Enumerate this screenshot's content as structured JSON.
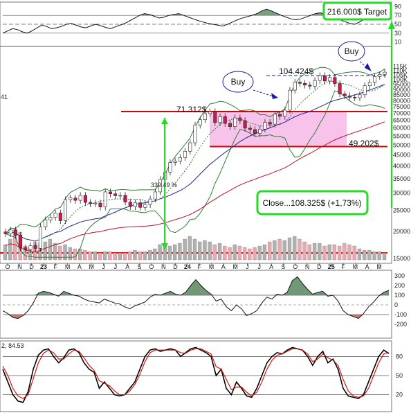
{
  "colors": {
    "up_candle": "#ffffff",
    "down_candle": "#cc1a4a",
    "wick": "#222222",
    "bollinger": "#2e7d32",
    "ma_blue": "#1f1f9e",
    "ma_red": "#c0102a",
    "ma_dotted": "#2e7d32",
    "range_box": "#f7b8e8",
    "support_line": "#dd0000",
    "arrow": "#22dd22",
    "osc_fill": "#4f7f55",
    "osc_neg_fill": "#b05a5a",
    "stoch_k": "#000000",
    "stoch_d": "#dd0000",
    "volume_up": "#b0b0b0",
    "volume_down": "#e8a8b0",
    "target_line": "#1010cc",
    "label_box_border": "#22dd22"
  },
  "chart_data": [
    {
      "type": "line",
      "panel": "top_oscillator",
      "yaxis_ticks": [
        "90",
        "70",
        "50",
        "30",
        "10"
      ],
      "reference_lines": [
        70,
        50,
        30
      ],
      "y": [
        30,
        35,
        40,
        38,
        33,
        30,
        35,
        42,
        48,
        45,
        40,
        42,
        45,
        50,
        52,
        48,
        44,
        42,
        46,
        50,
        47,
        43,
        40,
        44,
        48,
        52,
        58,
        64,
        70,
        74,
        72,
        68,
        64,
        66,
        70,
        72,
        74,
        70,
        66,
        62,
        58,
        55,
        52,
        50,
        48,
        46,
        50,
        55,
        60,
        64,
        67,
        70,
        74,
        80,
        84,
        80,
        75,
        70,
        66,
        62,
        60,
        62,
        66,
        70,
        74,
        76,
        72,
        68,
        64,
        60,
        56,
        52,
        50,
        55,
        62,
        70,
        76,
        78,
        74,
        70
      ]
    },
    {
      "type": "candlestick",
      "panel": "price",
      "yaxis_ticks": [
        "115K",
        "110K",
        "105K",
        "100K",
        "95000",
        "90000",
        "85000",
        "80000",
        "75000",
        "70000",
        "65000",
        "60000",
        "55000",
        "50000",
        "45000",
        "40000",
        "35000",
        "30000",
        "25000",
        "20000",
        "15000"
      ],
      "xaxis_ticks": [
        "O",
        "N",
        "D",
        "23",
        "F",
        "M",
        "A",
        "M",
        "J",
        "J",
        "A",
        "S",
        "O",
        "N",
        "D",
        "24",
        "F",
        "M",
        "A",
        "M",
        "J",
        "J",
        "A",
        "S",
        "O",
        "N",
        "D",
        "25",
        "F",
        "M",
        "A",
        "M"
      ],
      "series": [
        {
          "name": "close",
          "values": [
            19500,
            20300,
            19200,
            16800,
            16500,
            17200,
            16700,
            21000,
            22600,
            23200,
            24300,
            22400,
            28000,
            28500,
            27800,
            29300,
            27200,
            26800,
            27000,
            25900,
            30400,
            29800,
            29200,
            29300,
            27300,
            26000,
            27100,
            25800,
            26600,
            28200,
            30400,
            34700,
            37500,
            41500,
            42200,
            43800,
            46800,
            51200,
            61800,
            65400,
            69800,
            71300,
            63500,
            67600,
            62900,
            60800,
            66700,
            64800,
            59800,
            58900,
            56500,
            59200,
            63600,
            62400,
            69300,
            67800,
            72400,
            89500,
            97400,
            96200,
            94400,
            93400,
            99200,
            104400,
            98600,
            102400,
            96000,
            86000,
            84300,
            83000,
            82600,
            85200,
            93800,
            97100,
            103500,
            105800,
            108325
          ]
        }
      ],
      "annotations": [
        "71.312$",
        "104.424$",
        "49.202$",
        "339.49 %",
        "Buy",
        "Buy"
      ],
      "levels": [
        71312,
        104424,
        49202
      ]
    },
    {
      "type": "bar",
      "panel": "volume",
      "values": [
        22,
        30,
        44,
        40,
        20,
        18,
        26,
        24,
        26,
        30,
        24,
        20,
        22,
        18,
        16,
        16,
        14,
        12,
        12,
        10,
        12,
        12,
        10,
        10,
        10,
        12,
        14,
        12,
        12,
        14,
        16,
        22,
        24,
        20,
        22,
        24,
        30,
        34,
        30,
        26,
        28,
        26,
        22,
        24,
        20,
        18,
        22,
        20,
        18,
        16,
        18,
        20,
        22,
        26,
        28,
        30,
        28,
        32,
        34,
        30,
        26,
        22,
        24,
        24,
        20,
        22,
        22,
        20,
        24,
        22,
        20,
        16,
        14,
        14,
        12,
        12,
        10
      ]
    },
    {
      "type": "line",
      "panel": "cci",
      "yaxis_ticks": [
        "300",
        "200",
        "100",
        "0",
        "-100",
        "-200"
      ],
      "reference_lines": [
        100,
        0,
        -100
      ],
      "y": [
        -60,
        -90,
        -130,
        -140,
        -110,
        -60,
        20,
        120,
        140,
        130,
        110,
        90,
        140,
        120,
        100,
        90,
        60,
        40,
        30,
        20,
        60,
        40,
        20,
        10,
        -20,
        -40,
        -10,
        10,
        30,
        80,
        110,
        100,
        120,
        140,
        110,
        100,
        130,
        200,
        260,
        200,
        150,
        110,
        40,
        60,
        -20,
        -60,
        0,
        -40,
        -110,
        -90,
        -60,
        20,
        80,
        60,
        110,
        100,
        130,
        250,
        290,
        220,
        160,
        110,
        130,
        140,
        90,
        100,
        40,
        -60,
        -100,
        -120,
        -140,
        -90,
        -20,
        30,
        90,
        130,
        150
      ]
    },
    {
      "type": "line",
      "panel": "stochastic",
      "title": "84.53",
      "yaxis_ticks": [
        "80",
        "50",
        "20"
      ],
      "reference_lines": [
        80,
        50,
        20
      ],
      "series": [
        {
          "name": "%K",
          "values": [
            60,
            40,
            20,
            10,
            8,
            25,
            60,
            82,
            90,
            92,
            80,
            70,
            78,
            90,
            92,
            86,
            70,
            60,
            55,
            30,
            40,
            30,
            20,
            18,
            20,
            30,
            40,
            60,
            80,
            90,
            92,
            88,
            90,
            92,
            90,
            80,
            86,
            92,
            94,
            90,
            86,
            80,
            50,
            60,
            30,
            20,
            40,
            30,
            18,
            16,
            30,
            50,
            70,
            80,
            86,
            84,
            90,
            94,
            92,
            90,
            80,
            66,
            80,
            88,
            70,
            76,
            60,
            30,
            18,
            16,
            14,
            20,
            40,
            60,
            80,
            90,
            84.53
          ]
        },
        {
          "name": "%D",
          "values": [
            65,
            50,
            30,
            18,
            14,
            20,
            45,
            70,
            85,
            90,
            86,
            76,
            76,
            84,
            90,
            88,
            78,
            66,
            58,
            42,
            38,
            34,
            26,
            20,
            20,
            26,
            36,
            52,
            72,
            86,
            90,
            90,
            90,
            90,
            90,
            86,
            85,
            90,
            92,
            92,
            88,
            84,
            64,
            60,
            44,
            28,
            32,
            32,
            24,
            18,
            24,
            40,
            60,
            74,
            82,
            84,
            88,
            92,
            92,
            90,
            84,
            72,
            76,
            84,
            78,
            74,
            66,
            44,
            26,
            18,
            16,
            18,
            30,
            50,
            70,
            84,
            86
          ]
        }
      ]
    }
  ],
  "labels": {
    "target": "216.000$ Target",
    "close": "Close...108.325$ (+1,73%)",
    "buy1": "Buy",
    "buy2": "Buy",
    "level_high": "71.312$",
    "level_top": "104.424$",
    "level_low": "49.202$",
    "pct_gain": "339.49 %",
    "left_edge_value": "41",
    "stoch_prefix": "2,",
    "stoch_value": "84.53"
  }
}
